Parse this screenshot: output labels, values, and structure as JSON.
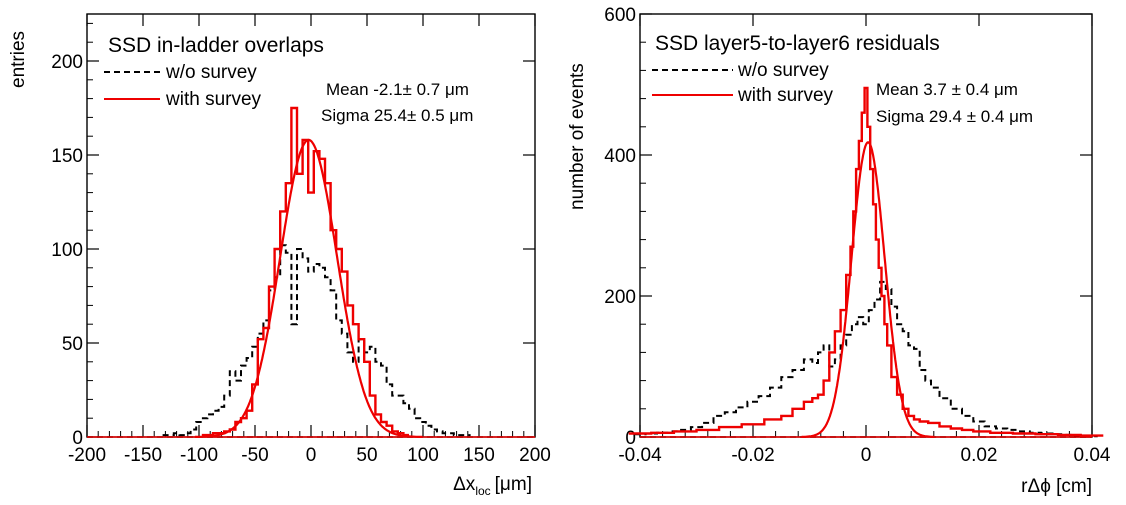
{
  "chart_data": [
    {
      "type": "histogram",
      "title": "SSD  in-ladder overlaps",
      "xlabel": "Δx",
      "xlabel_sub": "loc",
      "xlabel_unit": "[μm]",
      "ylabel": "entries",
      "xlim": [
        -200,
        200
      ],
      "ylim": [
        0,
        225
      ],
      "xticks": [
        -200,
        -150,
        -100,
        -50,
        0,
        50,
        100,
        150,
        200
      ],
      "yticks": [
        0,
        50,
        100,
        150,
        200
      ],
      "grid": false,
      "legend_position": "top-left",
      "bin_width": 5,
      "series": [
        {
          "name": "w/o survey",
          "color": "#000000",
          "style": "dashed",
          "x": [
            -130,
            -125,
            -120,
            -115,
            -110,
            -105,
            -100,
            -95,
            -90,
            -85,
            -80,
            -75,
            -70,
            -65,
            -60,
            -55,
            -50,
            -45,
            -40,
            -35,
            -30,
            -25,
            -20,
            -15,
            -10,
            -5,
            0,
            5,
            10,
            15,
            20,
            25,
            30,
            35,
            40,
            45,
            50,
            55,
            60,
            65,
            70,
            75,
            80,
            85,
            90,
            95,
            100,
            105,
            110,
            115,
            120,
            125,
            130,
            135,
            140
          ],
          "values": [
            1,
            1,
            2,
            1,
            2,
            4,
            8,
            10,
            12,
            14,
            16,
            22,
            35,
            30,
            38,
            42,
            48,
            55,
            62,
            78,
            85,
            102,
            98,
            60,
            100,
            95,
            88,
            92,
            90,
            85,
            78,
            62,
            55,
            45,
            40,
            52,
            45,
            48,
            40,
            38,
            28,
            22,
            22,
            18,
            15,
            10,
            8,
            6,
            4,
            3,
            2,
            2,
            1,
            1,
            1
          ]
        },
        {
          "name": "with survey",
          "color": "#ee0000",
          "style": "solid",
          "x": [
            -95,
            -90,
            -85,
            -80,
            -75,
            -70,
            -65,
            -60,
            -55,
            -50,
            -45,
            -40,
            -35,
            -30,
            -25,
            -20,
            -15,
            -10,
            -5,
            0,
            5,
            10,
            15,
            20,
            25,
            30,
            35,
            40,
            45,
            50,
            55,
            60,
            65,
            70,
            75,
            80,
            85
          ],
          "values": [
            1,
            1,
            2,
            2,
            3,
            4,
            8,
            10,
            14,
            28,
            52,
            58,
            80,
            100,
            120,
            135,
            175,
            140,
            158,
            130,
            152,
            148,
            135,
            110,
            100,
            88,
            70,
            60,
            52,
            40,
            22,
            12,
            8,
            6,
            3,
            2,
            1
          ]
        }
      ],
      "fit": {
        "type": "gaussian",
        "color": "#ee0000",
        "amplitude": 158,
        "mean": -2.1,
        "sigma": 25.4
      },
      "stats": [
        "Mean -2.1± 0.7 μm",
        "Sigma 25.4± 0.5 μm"
      ]
    },
    {
      "type": "histogram",
      "title": "SSD layer5-to-layer6 residuals",
      "xlabel": "rΔϕ [cm]",
      "ylabel": "number of events",
      "xlim": [
        -0.04,
        0.04
      ],
      "ylim": [
        0,
        600
      ],
      "xticks": [
        -0.04,
        -0.02,
        0,
        0.02,
        0.04
      ],
      "xtick_labels": [
        "-0.04",
        "-0.02",
        "0",
        "0.02",
        "0.04"
      ],
      "yticks": [
        0,
        200,
        400,
        600
      ],
      "grid": false,
      "legend_position": "top-left",
      "series": [
        {
          "name": "w/o survey",
          "color": "#000000",
          "style": "dashed",
          "x": [
            -0.04,
            -0.038,
            -0.036,
            -0.034,
            -0.032,
            -0.03,
            -0.028,
            -0.026,
            -0.024,
            -0.022,
            -0.02,
            -0.018,
            -0.016,
            -0.014,
            -0.012,
            -0.01,
            -0.009,
            -0.008,
            -0.007,
            -0.006,
            -0.005,
            -0.004,
            -0.003,
            -0.002,
            -0.001,
            0,
            0.001,
            0.002,
            0.003,
            0.004,
            0.005,
            0.006,
            0.007,
            0.008,
            0.009,
            0.01,
            0.011,
            0.012,
            0.014,
            0.016,
            0.018,
            0.02,
            0.022,
            0.024,
            0.026,
            0.028,
            0.03,
            0.032,
            0.034,
            0.036,
            0.038,
            0.04
          ],
          "values": [
            4,
            5,
            6,
            8,
            10,
            14,
            20,
            30,
            35,
            42,
            50,
            58,
            70,
            85,
            95,
            110,
            105,
            120,
            130,
            100,
            110,
            130,
            145,
            160,
            170,
            160,
            180,
            195,
            220,
            210,
            185,
            160,
            150,
            130,
            125,
            95,
            80,
            70,
            55,
            40,
            30,
            22,
            15,
            12,
            10,
            8,
            6,
            5,
            4,
            3,
            2,
            1
          ]
        },
        {
          "name": "with survey",
          "color": "#ee0000",
          "style": "solid",
          "x": [
            -0.04,
            -0.036,
            -0.032,
            -0.028,
            -0.024,
            -0.02,
            -0.016,
            -0.014,
            -0.012,
            -0.01,
            -0.009,
            -0.008,
            -0.007,
            -0.006,
            -0.005,
            -0.004,
            -0.003,
            -0.0025,
            -0.002,
            -0.0015,
            -0.001,
            -0.0005,
            0,
            0.0005,
            0.001,
            0.0015,
            0.002,
            0.0025,
            0.003,
            0.0035,
            0.004,
            0.005,
            0.006,
            0.007,
            0.008,
            0.009,
            0.01,
            0.012,
            0.014,
            0.016,
            0.018,
            0.02,
            0.024,
            0.028,
            0.032,
            0.036,
            0.04
          ],
          "values": [
            5,
            6,
            8,
            10,
            14,
            18,
            25,
            30,
            40,
            50,
            55,
            60,
            80,
            120,
            150,
            180,
            230,
            270,
            320,
            380,
            420,
            460,
            495,
            440,
            380,
            330,
            280,
            240,
            200,
            160,
            130,
            85,
            60,
            40,
            30,
            25,
            22,
            20,
            15,
            12,
            10,
            8,
            6,
            5,
            4,
            3,
            2
          ]
        }
      ],
      "fit": {
        "type": "gaussian",
        "color": "#ee0000",
        "amplitude": 418,
        "mean": 0.00037,
        "sigma": 0.00294
      },
      "stats": [
        "Mean  3.7 ± 0.4 μm",
        "Sigma  29.4 ± 0.4 μm"
      ]
    }
  ]
}
